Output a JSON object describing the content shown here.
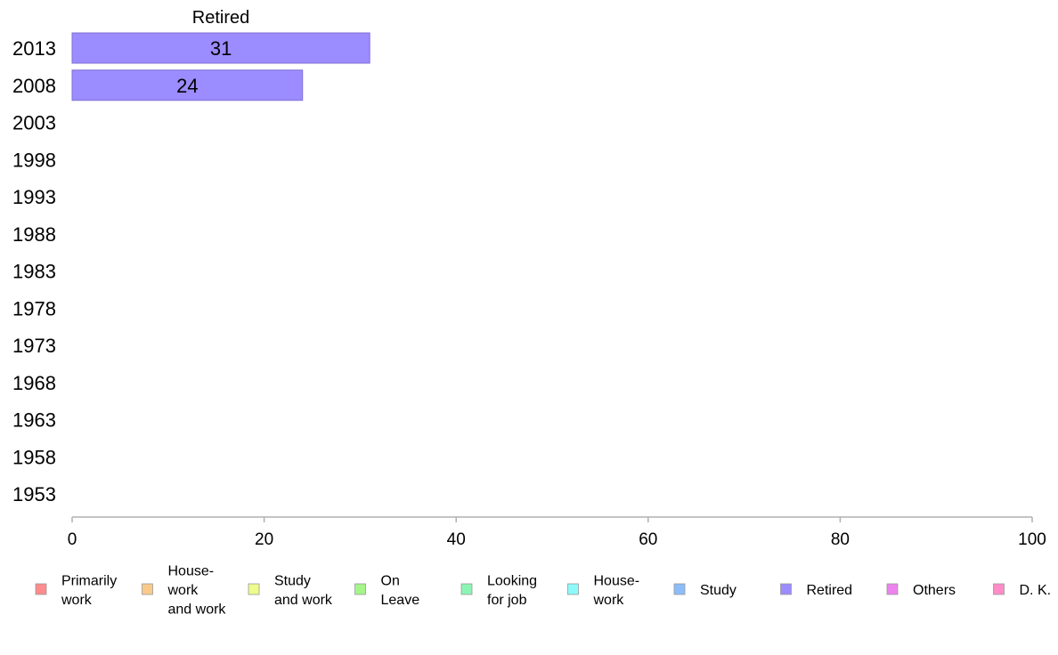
{
  "chart_data": {
    "type": "bar",
    "orientation": "horizontal",
    "title": "",
    "column_title": "Retired",
    "categories": [
      "2013",
      "2008",
      "2003",
      "1998",
      "1993",
      "1988",
      "1983",
      "1978",
      "1973",
      "1968",
      "1963",
      "1958",
      "1953"
    ],
    "series": [
      {
        "name": "Retired",
        "color": "#9b8cff",
        "values": [
          31,
          24,
          null,
          null,
          null,
          null,
          null,
          null,
          null,
          null,
          null,
          null,
          null
        ]
      }
    ],
    "xlim": [
      0,
      100
    ],
    "xticks": [
      "0",
      "20",
      "40",
      "60",
      "80",
      "100"
    ],
    "grid": false,
    "legend": {
      "placement": "bottom",
      "items": [
        {
          "label": "Primarily\nwork",
          "color": "#ff8c8c"
        },
        {
          "label": "House-\nwork\nand work",
          "color": "#f9c98a"
        },
        {
          "label": "Study\nand work",
          "color": "#eefc8c"
        },
        {
          "label": "On\nLeave",
          "color": "#a6f58a"
        },
        {
          "label": "Looking\nfor job",
          "color": "#8cf5b4"
        },
        {
          "label": "House-\nwork",
          "color": "#8cfafa"
        },
        {
          "label": "Study",
          "color": "#8cbcfa"
        },
        {
          "label": "Retired",
          "color": "#9b8cff"
        },
        {
          "label": "Others",
          "color": "#ee82ee"
        },
        {
          "label": "D. K.",
          "color": "#ff8cc8"
        }
      ]
    }
  }
}
